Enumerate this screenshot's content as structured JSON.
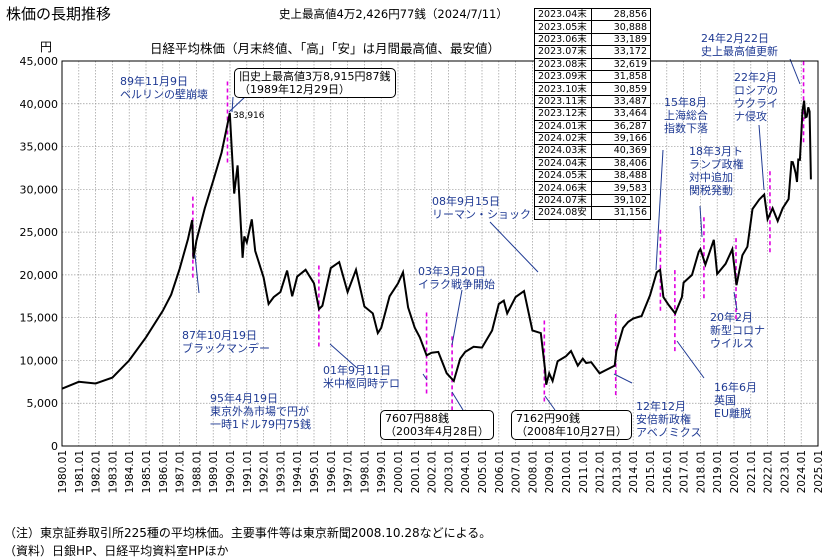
{
  "header": {
    "title": "株価の長期推移",
    "record": "史上最高値4万2,426円77銭（2024/7/11）",
    "series_label": "日経平均株価（月末終値、「高」「安」は月間最高値、最安値）",
    "unit": "円"
  },
  "recent_table": [
    {
      "date": "2023.04末",
      "value": "28,856"
    },
    {
      "date": "2023.05末",
      "value": "30,888"
    },
    {
      "date": "2023.06末",
      "value": "33,189"
    },
    {
      "date": "2023.07末",
      "value": "33,172"
    },
    {
      "date": "2023.08末",
      "value": "32,619"
    },
    {
      "date": "2023.09末",
      "value": "31,858"
    },
    {
      "date": "2023.10末",
      "value": "30,859"
    },
    {
      "date": "2023.11末",
      "value": "33,487"
    },
    {
      "date": "2023.12末",
      "value": "33,464"
    },
    {
      "date": "2024.01末",
      "value": "36,287"
    },
    {
      "date": "2024.02末",
      "value": "39,166"
    },
    {
      "date": "2024.03末",
      "value": "40,369"
    },
    {
      "date": "2024.04末",
      "value": "38,406"
    },
    {
      "date": "2024.05末",
      "value": "38,488"
    },
    {
      "date": "2024.06末",
      "value": "39,583"
    },
    {
      "date": "2024.07末",
      "value": "39,102"
    },
    {
      "date": "2024.08安",
      "value": "31,156"
    }
  ],
  "annotations": {
    "berlin": "89年11月9日\nベルリンの壁崩壊",
    "old_high": "旧史上最高値3万8,915円87銭\n（1989年12月29日）",
    "old_high_value": "38,916",
    "black_monday": "87年10月19日\nブラックマンデー",
    "yen_high": "95年4月19日\n東京外為市場で円が\n一時1ドル79円75銭",
    "sept11": "01年9月11日\n米中枢同時テロ",
    "iraq": "03年3月20日\nイラク戦争開始",
    "low_2003": "7607円88銭\n（2003年4月28日）",
    "lehman": "08年9月15日\nリーマン・ショック",
    "low_2008": "7162円90銭\n（2008年10月27日）",
    "abenomics": "12年12月\n安倍新政権\nアベノミクス",
    "shanghai": "15年8月\n上海総合\n指数下落",
    "trump": "18年3月ト\nランプ政権\n対中追加\n関税発動",
    "brexit": "16年6月\n英国\nEU離脱",
    "covid": "20年2月\n新型コロナ\nウイルス",
    "russia": "22年2月\nロシアの\nウクライ\nナ侵攻",
    "new_high": "24年2月22日\n史上最高値更新"
  },
  "footnote": {
    "note": "（注）東京証券取引所225種の平均株価。主要事件等は東京新聞2008.10.28などによる。",
    "source": "（資料）日銀HP、日経平均資料室HPほか"
  },
  "chart_data": {
    "type": "line",
    "title": "株価の長期推移",
    "ylabel": "円",
    "ylim": [
      0,
      45000
    ],
    "yticks": [
      0,
      5000,
      10000,
      15000,
      20000,
      25000,
      30000,
      35000,
      40000,
      45000
    ],
    "ytick_labels": [
      "0",
      "5,000",
      "10,000",
      "15,000",
      "20,000",
      "25,000",
      "30,000",
      "35,000",
      "40,000",
      "45,000"
    ],
    "xlim": [
      1980,
      2025
    ],
    "xtick_labels": [
      "1980.01",
      "1981.01",
      "1982.01",
      "1983.01",
      "1984.01",
      "1985.01",
      "1986.01",
      "1987.01",
      "1988.01",
      "1989.01",
      "1990.01",
      "1991.01",
      "1992.01",
      "1993.01",
      "1994.01",
      "1995.01",
      "1996.01",
      "1997.01",
      "1998.01",
      "1999.01",
      "2000.01",
      "2001.01",
      "2002.01",
      "2003.01",
      "2004.01",
      "2005.01",
      "2006.01",
      "2007.01",
      "2008.01",
      "2009.01",
      "2010.01",
      "2011.01",
      "2012.01",
      "2013.01",
      "2014.01",
      "2015.01",
      "2016.01",
      "2017.01",
      "2018.01",
      "2019.01",
      "2020.01",
      "2021.01",
      "2022.01",
      "2023.01",
      "2024.01",
      "2025.01"
    ],
    "grid": true,
    "line_color": "#000000",
    "event_color": "#e000e0",
    "series": [
      {
        "x": [
          1980.0,
          1981.0,
          1982.0,
          1983.0,
          1984.0,
          1985.0,
          1986.0,
          1986.5,
          1987.0,
          1987.5,
          1987.75,
          1987.83,
          1988.0,
          1988.5,
          1989.0,
          1989.5,
          1989.99,
          1990.25,
          1990.45,
          1990.75,
          1990.85,
          1991.0,
          1991.3,
          1991.5,
          1992.0,
          1992.3,
          1992.6,
          1993.0,
          1993.4,
          1993.7,
          1994.0,
          1994.5,
          1995.0,
          1995.3,
          1995.5,
          1996.0,
          1996.5,
          1997.0,
          1997.5,
          1998.0,
          1998.5,
          1998.8,
          1999.0,
          1999.5,
          2000.0,
          2000.3,
          2000.6,
          2001.0,
          2001.3,
          2001.7,
          2002.0,
          2002.4,
          2002.9,
          2003.32,
          2003.7,
          2004.0,
          2004.5,
          2005.0,
          2005.6,
          2006.0,
          2006.3,
          2006.5,
          2007.0,
          2007.5,
          2008.0,
          2008.5,
          2008.75,
          2008.82,
          2009.0,
          2009.2,
          2009.5,
          2010.0,
          2010.3,
          2010.7,
          2011.0,
          2011.2,
          2011.5,
          2012.0,
          2012.4,
          2012.9,
          2013.0,
          2013.4,
          2013.7,
          2014.0,
          2014.5,
          2015.0,
          2015.4,
          2015.6,
          2015.8,
          2016.1,
          2016.5,
          2016.9,
          2017.0,
          2017.5,
          2017.9,
          2018.0,
          2018.3,
          2018.8,
          2019.0,
          2019.5,
          2019.9,
          2020.15,
          2020.5,
          2020.8,
          2021.1,
          2021.5,
          2021.8,
          2022.0,
          2022.3,
          2022.6,
          2022.9,
          2023.25,
          2023.33,
          2023.42,
          2023.5,
          2023.58,
          2023.67,
          2023.75,
          2023.83,
          2023.92,
          2024.0,
          2024.08,
          2024.17,
          2024.25,
          2024.33,
          2024.42,
          2024.5,
          2024.58
        ],
        "y": [
          6700,
          7500,
          7300,
          8000,
          10000,
          12700,
          15800,
          17700,
          20700,
          24200,
          26400,
          21900,
          24000,
          27800,
          31000,
          34300,
          38916,
          29500,
          32800,
          22000,
          24500,
          23800,
          26500,
          22800,
          19700,
          16600,
          17400,
          18000,
          20500,
          17500,
          19800,
          20600,
          19000,
          16000,
          16400,
          20800,
          21500,
          18000,
          20600,
          16300,
          15500,
          13200,
          13800,
          17500,
          19000,
          20300,
          16200,
          13800,
          12700,
          10600,
          10900,
          11000,
          8500,
          7608,
          10200,
          11000,
          11600,
          11500,
          13500,
          16600,
          17000,
          15500,
          17400,
          18100,
          13500,
          13200,
          9000,
          7163,
          8500,
          7600,
          9900,
          10500,
          11100,
          9400,
          10200,
          9700,
          9800,
          8500,
          8900,
          9400,
          11100,
          13800,
          14500,
          14900,
          15200,
          17600,
          20300,
          20600,
          17400,
          16500,
          15500,
          17400,
          19100,
          20000,
          22700,
          23000,
          21200,
          24100,
          20100,
          21300,
          23000,
          18800,
          22300,
          23300,
          27700,
          28800,
          29400,
          26500,
          27800,
          26300,
          27800,
          28856,
          30888,
          33189,
          33172,
          32619,
          31858,
          30859,
          33487,
          33464,
          36287,
          39166,
          40369,
          38406,
          38488,
          39583,
          39102,
          31156
        ]
      }
    ],
    "event_lines": [
      1987.79,
      1989.85,
      1995.29,
      2001.7,
      2003.22,
      2008.71,
      2012.96,
      2015.62,
      2016.48,
      2018.21,
      2020.12,
      2022.14,
      2024.14
    ]
  }
}
